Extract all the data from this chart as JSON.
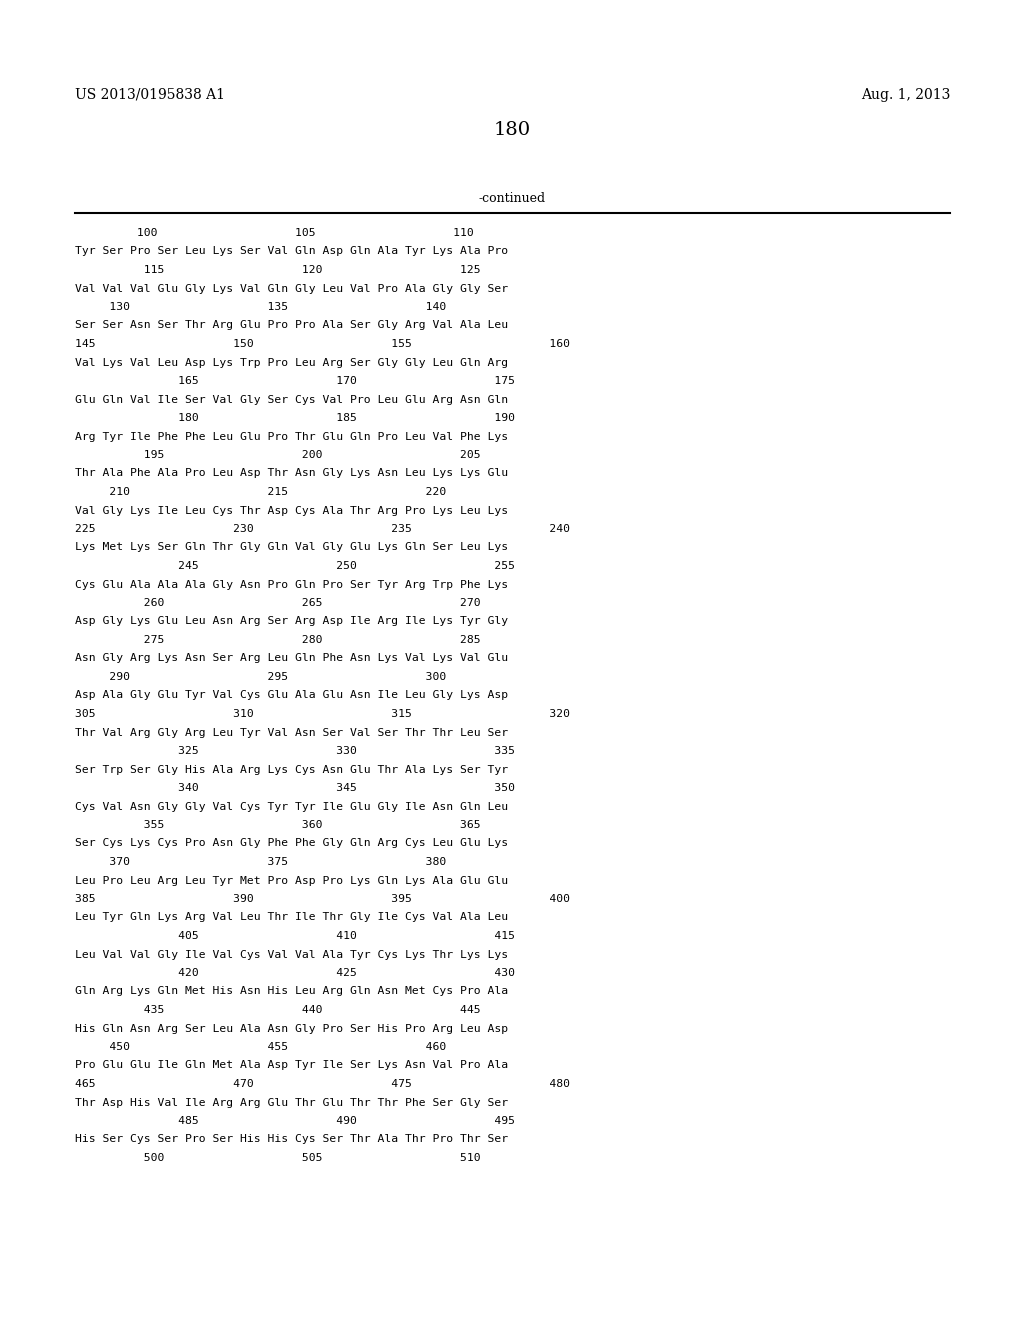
{
  "header_left": "US 2013/0195838 A1",
  "header_right": "Aug. 1, 2013",
  "page_number": "180",
  "continued_label": "-continued",
  "background_color": "#ffffff",
  "text_color": "#000000",
  "figsize": [
    10.24,
    13.2
  ],
  "dpi": 100,
  "seq_lines": [
    "         100                    105                    110",
    "Tyr Ser Pro Ser Leu Lys Ser Val Gln Asp Gln Ala Tyr Lys Ala Pro",
    "          115                    120                    125",
    "Val Val Val Glu Gly Lys Val Gln Gly Leu Val Pro Ala Gly Gly Ser",
    "     130                    135                    140",
    "Ser Ser Asn Ser Thr Arg Glu Pro Pro Ala Ser Gly Arg Val Ala Leu",
    "145                    150                    155                    160",
    "Val Lys Val Leu Asp Lys Trp Pro Leu Arg Ser Gly Gly Leu Gln Arg",
    "               165                    170                    175",
    "Glu Gln Val Ile Ser Val Gly Ser Cys Val Pro Leu Glu Arg Asn Gln",
    "               180                    185                    190",
    "Arg Tyr Ile Phe Phe Leu Glu Pro Thr Glu Gln Pro Leu Val Phe Lys",
    "          195                    200                    205",
    "Thr Ala Phe Ala Pro Leu Asp Thr Asn Gly Lys Asn Leu Lys Lys Glu",
    "     210                    215                    220",
    "Val Gly Lys Ile Leu Cys Thr Asp Cys Ala Thr Arg Pro Lys Leu Lys",
    "225                    230                    235                    240",
    "Lys Met Lys Ser Gln Thr Gly Gln Val Gly Glu Lys Gln Ser Leu Lys",
    "               245                    250                    255",
    "Cys Glu Ala Ala Ala Gly Asn Pro Gln Pro Ser Tyr Arg Trp Phe Lys",
    "          260                    265                    270",
    "Asp Gly Lys Glu Leu Asn Arg Ser Arg Asp Ile Arg Ile Lys Tyr Gly",
    "          275                    280                    285",
    "Asn Gly Arg Lys Asn Ser Arg Leu Gln Phe Asn Lys Val Lys Val Glu",
    "     290                    295                    300",
    "Asp Ala Gly Glu Tyr Val Cys Glu Ala Glu Asn Ile Leu Gly Lys Asp",
    "305                    310                    315                    320",
    "Thr Val Arg Gly Arg Leu Tyr Val Asn Ser Val Ser Thr Thr Leu Ser",
    "               325                    330                    335",
    "Ser Trp Ser Gly His Ala Arg Lys Cys Asn Glu Thr Ala Lys Ser Tyr",
    "               340                    345                    350",
    "Cys Val Asn Gly Gly Val Cys Tyr Tyr Ile Glu Gly Ile Asn Gln Leu",
    "          355                    360                    365",
    "Ser Cys Lys Cys Pro Asn Gly Phe Phe Gly Gln Arg Cys Leu Glu Lys",
    "     370                    375                    380",
    "Leu Pro Leu Arg Leu Tyr Met Pro Asp Pro Lys Gln Lys Ala Glu Glu",
    "385                    390                    395                    400",
    "Leu Tyr Gln Lys Arg Val Leu Thr Ile Thr Gly Ile Cys Val Ala Leu",
    "               405                    410                    415",
    "Leu Val Val Gly Ile Val Cys Val Val Ala Tyr Cys Lys Thr Lys Lys",
    "               420                    425                    430",
    "Gln Arg Lys Gln Met His Asn His Leu Arg Gln Asn Met Cys Pro Ala",
    "          435                    440                    445",
    "His Gln Asn Arg Ser Leu Ala Asn Gly Pro Ser His Pro Arg Leu Asp",
    "     450                    455                    460",
    "Pro Glu Glu Ile Gln Met Ala Asp Tyr Ile Ser Lys Asn Val Pro Ala",
    "465                    470                    475                    480",
    "Thr Asp His Val Ile Arg Arg Glu Thr Glu Thr Thr Phe Ser Gly Ser",
    "               485                    490                    495",
    "His Ser Cys Ser Pro Ser His His Cys Ser Thr Ala Thr Pro Thr Ser",
    "          500                    505                    510"
  ]
}
